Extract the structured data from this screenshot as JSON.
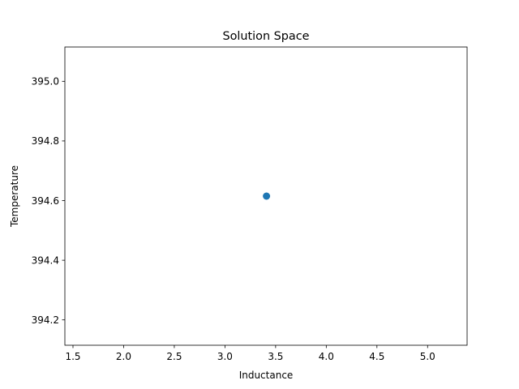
{
  "chart_data": {
    "type": "scatter",
    "title": "Solution Space",
    "xlabel": "Inductance",
    "ylabel": "Temperature",
    "xlim": [
      1.42,
      5.39
    ],
    "ylim": [
      394.115,
      395.115
    ],
    "x_ticks": [
      1.5,
      2.0,
      2.5,
      3.0,
      3.5,
      4.0,
      4.5,
      5.0
    ],
    "x_tick_labels": [
      "1.5",
      "2.0",
      "2.5",
      "3.0",
      "3.5",
      "4.0",
      "4.5",
      "5.0"
    ],
    "y_ticks": [
      394.2,
      394.4,
      394.6,
      394.8,
      395.0
    ],
    "y_tick_labels": [
      "394.2",
      "394.4",
      "394.6",
      "394.8",
      "395.0"
    ],
    "grid": false,
    "legend": "none",
    "marker_color": "#1f77b4",
    "series": [
      {
        "points": [
          {
            "x": 3.41,
            "y": 394.615
          }
        ]
      }
    ]
  }
}
